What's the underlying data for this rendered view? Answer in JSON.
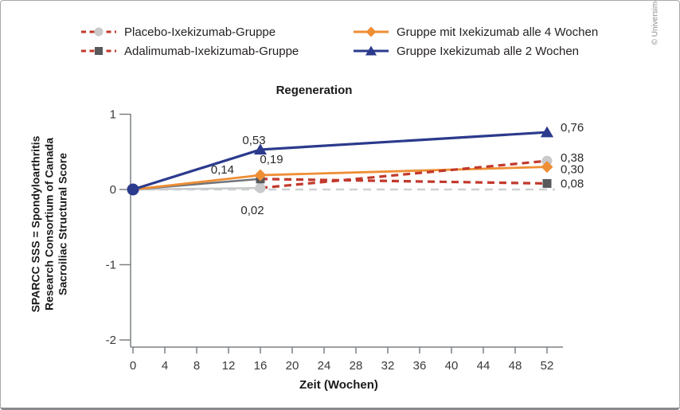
{
  "copyright": "© Universimed",
  "chart_data": {
    "type": "line",
    "title": "Regeneration",
    "xlabel": "Zeit (Wochen)",
    "ylabel_lines": [
      "SPARCC SSS = Spondyloarthritis",
      "Research Consortium of Canada",
      "Sacroiliac Structural Score"
    ],
    "xticks": [
      0,
      4,
      8,
      12,
      16,
      20,
      24,
      28,
      32,
      36,
      40,
      44,
      48,
      52
    ],
    "yticks": [
      1,
      0,
      -1,
      -2
    ],
    "xlim": [
      0,
      53
    ],
    "ylim": [
      -2,
      1
    ],
    "grid": false,
    "legend_position": "top",
    "reference_line": {
      "y": 0,
      "color": "#cdd0d1",
      "width": 2.5,
      "dash": "10 7"
    },
    "origin_marker": {
      "x": 0,
      "y": 0,
      "shape": "circle",
      "color": "#2b3a8c",
      "size": 7.5
    },
    "legend_columns": [
      [
        0,
        1
      ],
      [
        2,
        3
      ]
    ],
    "series": [
      {
        "name": "Placebo-Ixekizumab-Gruppe",
        "marker": {
          "shape": "circle",
          "color": "#c8cacc",
          "size": 6.5
        },
        "legend_line": {
          "color": "#c2392c",
          "dash": "6 4.5",
          "width": 3
        },
        "x": [
          0,
          16,
          52
        ],
        "values": [
          0,
          0.02,
          0.38
        ],
        "segments": [
          {
            "points": [
              [
                0,
                0
              ],
              [
                16,
                0.02
              ]
            ],
            "color": "#c8cacc",
            "width": 2.5,
            "dash": ""
          },
          {
            "points": [
              [
                16,
                0.02
              ],
              [
                52,
                0.38
              ]
            ],
            "color": "#c2392c",
            "width": 3.2,
            "dash": "9 6",
            "top": true
          }
        ],
        "labels": [
          {
            "x": 16,
            "y": 0.02,
            "text": "0,02",
            "dx": -10,
            "dy": 33,
            "anchor": "middle"
          },
          {
            "x": 52,
            "y": 0.38,
            "text": "0,38",
            "dx": 17,
            "dy": 1,
            "anchor": "start"
          }
        ]
      },
      {
        "name": "Adalimumab-Ixekizumab-Gruppe",
        "marker": {
          "shape": "square",
          "color": "#58595b",
          "size": 5.5
        },
        "legend_line": {
          "color": "#c2392c",
          "dash": "6 4.5",
          "width": 3
        },
        "x": [
          0,
          16,
          52
        ],
        "values": [
          0,
          0.14,
          0.08
        ],
        "segments": [
          {
            "points": [
              [
                0,
                0
              ],
              [
                16,
                0.14
              ]
            ],
            "color": "#717478",
            "width": 2.5,
            "dash": ""
          },
          {
            "points": [
              [
                16,
                0.14
              ],
              [
                52,
                0.08
              ]
            ],
            "color": "#c2392c",
            "width": 3.2,
            "dash": "9 6",
            "top": true
          }
        ],
        "labels": [
          {
            "x": 16,
            "y": 0.14,
            "text": "0,14",
            "dx": -33,
            "dy": -7,
            "anchor": "end"
          },
          {
            "x": 52,
            "y": 0.08,
            "text": "0,08",
            "dx": 17,
            "dy": 5,
            "anchor": "start"
          }
        ]
      },
      {
        "name": "Gruppe mit Ixekizumab alle 4 Wochen",
        "marker": {
          "shape": "diamond",
          "color": "#ee8e35",
          "size": 7.5
        },
        "legend_line": {
          "color": "#ee8e35",
          "dash": "",
          "width": 3
        },
        "x": [
          0,
          16,
          52
        ],
        "values": [
          0,
          0.19,
          0.3
        ],
        "segments": [
          {
            "points": [
              [
                0,
                0
              ],
              [
                16,
                0.19
              ],
              [
                52,
                0.3
              ]
            ],
            "color": "#ee8e35",
            "width": 2.8,
            "dash": ""
          }
        ],
        "labels": [
          {
            "x": 16,
            "y": 0.19,
            "text": "0,19",
            "dx": 14,
            "dy": -15,
            "anchor": "middle"
          },
          {
            "x": 52,
            "y": 0.3,
            "text": "0,30",
            "dx": 17,
            "dy": 8,
            "anchor": "start"
          }
        ]
      },
      {
        "name": "Gruppe Ixekizumab alle 2 Wochen",
        "marker": {
          "shape": "triangle",
          "color": "#2b3a8c",
          "size": 7.5
        },
        "legend_line": {
          "color": "#2b3a8c",
          "dash": "",
          "width": 3
        },
        "x": [
          0,
          16,
          52
        ],
        "values": [
          0,
          0.53,
          0.76
        ],
        "segments": [
          {
            "points": [
              [
                0,
                0
              ],
              [
                16,
                0.53
              ],
              [
                52,
                0.76
              ]
            ],
            "color": "#2b3a8c",
            "width": 3.2,
            "dash": "",
            "top2": true
          }
        ],
        "labels": [
          {
            "x": 16,
            "y": 0.53,
            "text": "0,53",
            "dx": -8,
            "dy": -7,
            "anchor": "middle"
          },
          {
            "x": 52,
            "y": 0.76,
            "text": "0,76",
            "dx": 17,
            "dy": -1,
            "anchor": "start"
          }
        ]
      }
    ],
    "axis_color": "#7d8083"
  }
}
